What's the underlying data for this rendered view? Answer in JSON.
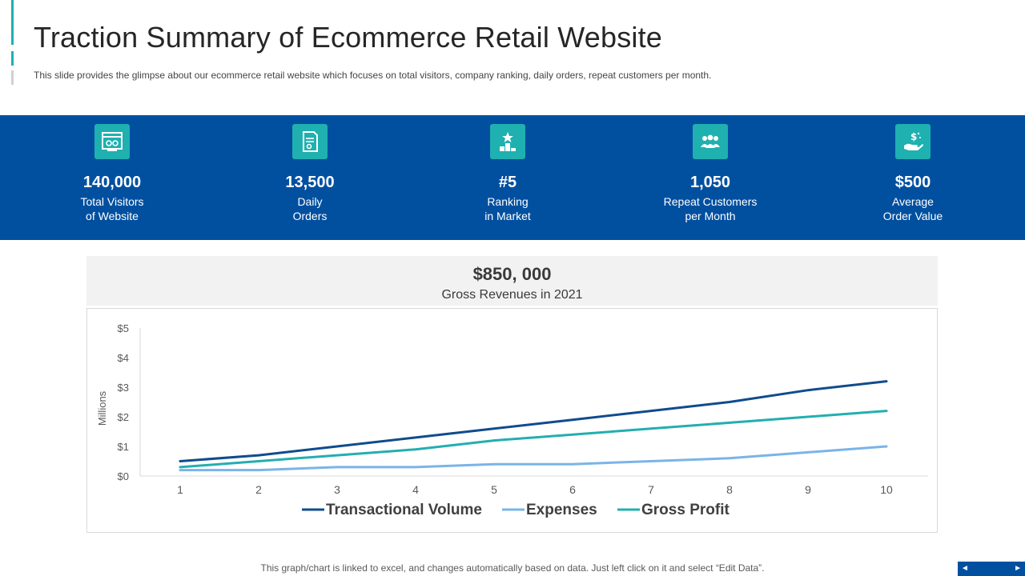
{
  "header": {
    "title": "Traction Summary of Ecommerce Retail Website",
    "subtitle": "This slide provides  the glimpse about our ecommerce retail website which focuses on total visitors, company ranking, daily orders, repeat customers per month."
  },
  "kpis": [
    {
      "icon": "website-icon",
      "value": "140,000",
      "label_line1": "Total Visitors",
      "label_line2": "of Website"
    },
    {
      "icon": "order-receipt-icon",
      "value": "13,500",
      "label_line1": "Daily",
      "label_line2": "Orders"
    },
    {
      "icon": "podium-star-icon",
      "value": "#5",
      "label_line1": "Ranking",
      "label_line2": "in Market"
    },
    {
      "icon": "customers-group-icon",
      "value": "1,050",
      "label_line1": "Repeat Customers",
      "label_line2": "per Month"
    },
    {
      "icon": "hand-dollar-icon",
      "value": "$500",
      "label_line1": "Average",
      "label_line2": "Order Value"
    }
  ],
  "revenue": {
    "value": "$850, 000",
    "label": "Gross Revenues  in 2021"
  },
  "colors": {
    "band": "#0150a0",
    "icon_bg": "#1fb0b0",
    "transactional": "#0f4c8c",
    "expenses": "#7ab4e8",
    "gross_profit": "#24aeb0"
  },
  "chart_data": {
    "type": "line",
    "x": [
      1,
      2,
      3,
      4,
      5,
      6,
      7,
      8,
      9,
      10
    ],
    "ylabel": "Millions",
    "ylim": [
      0,
      5
    ],
    "yticks": [
      0,
      1,
      2,
      3,
      4,
      5
    ],
    "ytick_labels": [
      "$0",
      "$1",
      "$2",
      "$3",
      "$4",
      "$5"
    ],
    "legend_position": "bottom",
    "grid": false,
    "series": [
      {
        "name": "Transactional Volume",
        "color": "#0f4c8c",
        "values": [
          0.5,
          0.7,
          1.0,
          1.3,
          1.6,
          1.9,
          2.2,
          2.5,
          2.9,
          3.2
        ]
      },
      {
        "name": "Expenses",
        "color": "#7ab4e8",
        "values": [
          0.2,
          0.2,
          0.3,
          0.3,
          0.4,
          0.4,
          0.5,
          0.6,
          0.8,
          1.0
        ]
      },
      {
        "name": "Gross Profit",
        "color": "#24aeb0",
        "values": [
          0.3,
          0.5,
          0.7,
          0.9,
          1.2,
          1.4,
          1.6,
          1.8,
          2.0,
          2.2
        ]
      }
    ]
  },
  "footer": {
    "note": "This graph/chart is linked to excel,  and changes automatically based on data. Just left click on it and select “Edit Data”.",
    "prev": "◄",
    "next": "►"
  }
}
